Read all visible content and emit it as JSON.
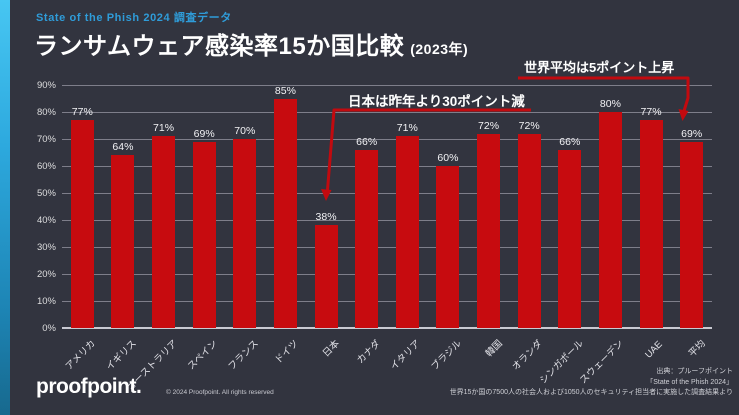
{
  "header": {
    "kicker": "State of the Phish 2024 調査データ",
    "title": "ランサムウェア感染率15か国比較",
    "title_suffix": "(2023年)"
  },
  "annotations": {
    "japan_note": "日本は昨年より30ポイント減",
    "world_note": "世界平均は5ポイント上昇"
  },
  "chart_data": {
    "type": "bar",
    "title": "ランサムウェア感染率15か国比較 (2023年)",
    "categories": [
      "アメリカ",
      "イギリス",
      "オーストラリア",
      "スペイン",
      "フランス",
      "ドイツ",
      "日本",
      "カナダ",
      "イタリア",
      "ブラジル",
      "韓国",
      "オランダ",
      "シンガポール",
      "スウェーデン",
      "UAE",
      "平均"
    ],
    "values": [
      77,
      64,
      71,
      69,
      70,
      85,
      38,
      66,
      71,
      60,
      72,
      72,
      66,
      80,
      77,
      69
    ],
    "value_suffix": "%",
    "y_ticks": [
      "0%",
      "10%",
      "20%",
      "30%",
      "40%",
      "50%",
      "60%",
      "70%",
      "80%",
      "90%"
    ],
    "ylim": [
      0,
      90
    ],
    "grid": true,
    "legend": "none",
    "xlabel": "",
    "ylabel": "",
    "bar_color": "#c70b0f"
  },
  "footer": {
    "logo": "proofpoint.",
    "copyright": "© 2024 Proofpoint. All rights reserved",
    "source_lines": [
      "出典：プルーフポイント",
      "「State of the Phish 2024」",
      "世界15か国の7500人の社会人および1050人のセキュリティ担当者に実施した調査結果より"
    ]
  },
  "colors": {
    "background": "#32343f",
    "bar": "#c70b0f",
    "accent_blue": "#2f9cd9",
    "annotation_red": "#c20a0f",
    "gridline": "#7e7e8a"
  }
}
